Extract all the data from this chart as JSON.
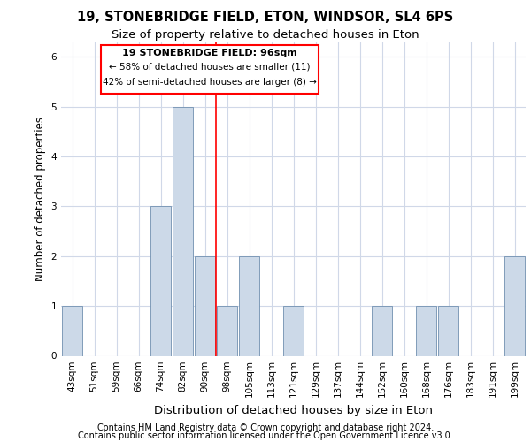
{
  "title1": "19, STONEBRIDGE FIELD, ETON, WINDSOR, SL4 6PS",
  "title2": "Size of property relative to detached houses in Eton",
  "xlabel": "Distribution of detached houses by size in Eton",
  "ylabel": "Number of detached properties",
  "footer1": "Contains HM Land Registry data © Crown copyright and database right 2024.",
  "footer2": "Contains public sector information licensed under the Open Government Licence v3.0.",
  "categories": [
    "43sqm",
    "51sqm",
    "59sqm",
    "66sqm",
    "74sqm",
    "82sqm",
    "90sqm",
    "98sqm",
    "105sqm",
    "113sqm",
    "121sqm",
    "129sqm",
    "137sqm",
    "144sqm",
    "152sqm",
    "160sqm",
    "168sqm",
    "176sqm",
    "183sqm",
    "191sqm",
    "199sqm"
  ],
  "values": [
    1,
    0,
    0,
    0,
    3,
    5,
    2,
    1,
    2,
    0,
    1,
    0,
    0,
    0,
    1,
    0,
    1,
    1,
    0,
    0,
    2
  ],
  "bar_color": "#ccd9e8",
  "bar_edge_color": "#7090b0",
  "property_label": "19 STONEBRIDGE FIELD: 96sqm",
  "annotation_line1": "← 58% of detached houses are smaller (11)",
  "annotation_line2": "42% of semi-detached houses are larger (8) →",
  "ref_line_x": 7.5,
  "ylim_max": 6.3,
  "title1_fontsize": 10.5,
  "title2_fontsize": 9.5,
  "xlabel_fontsize": 9.5,
  "ylabel_fontsize": 8.5,
  "tick_fontsize": 7.5,
  "annot_fontsize": 8,
  "footer_fontsize": 7,
  "bg_color": "#ffffff",
  "plot_bg_color": "#ffffff",
  "grid_color": "#d0d8e8"
}
